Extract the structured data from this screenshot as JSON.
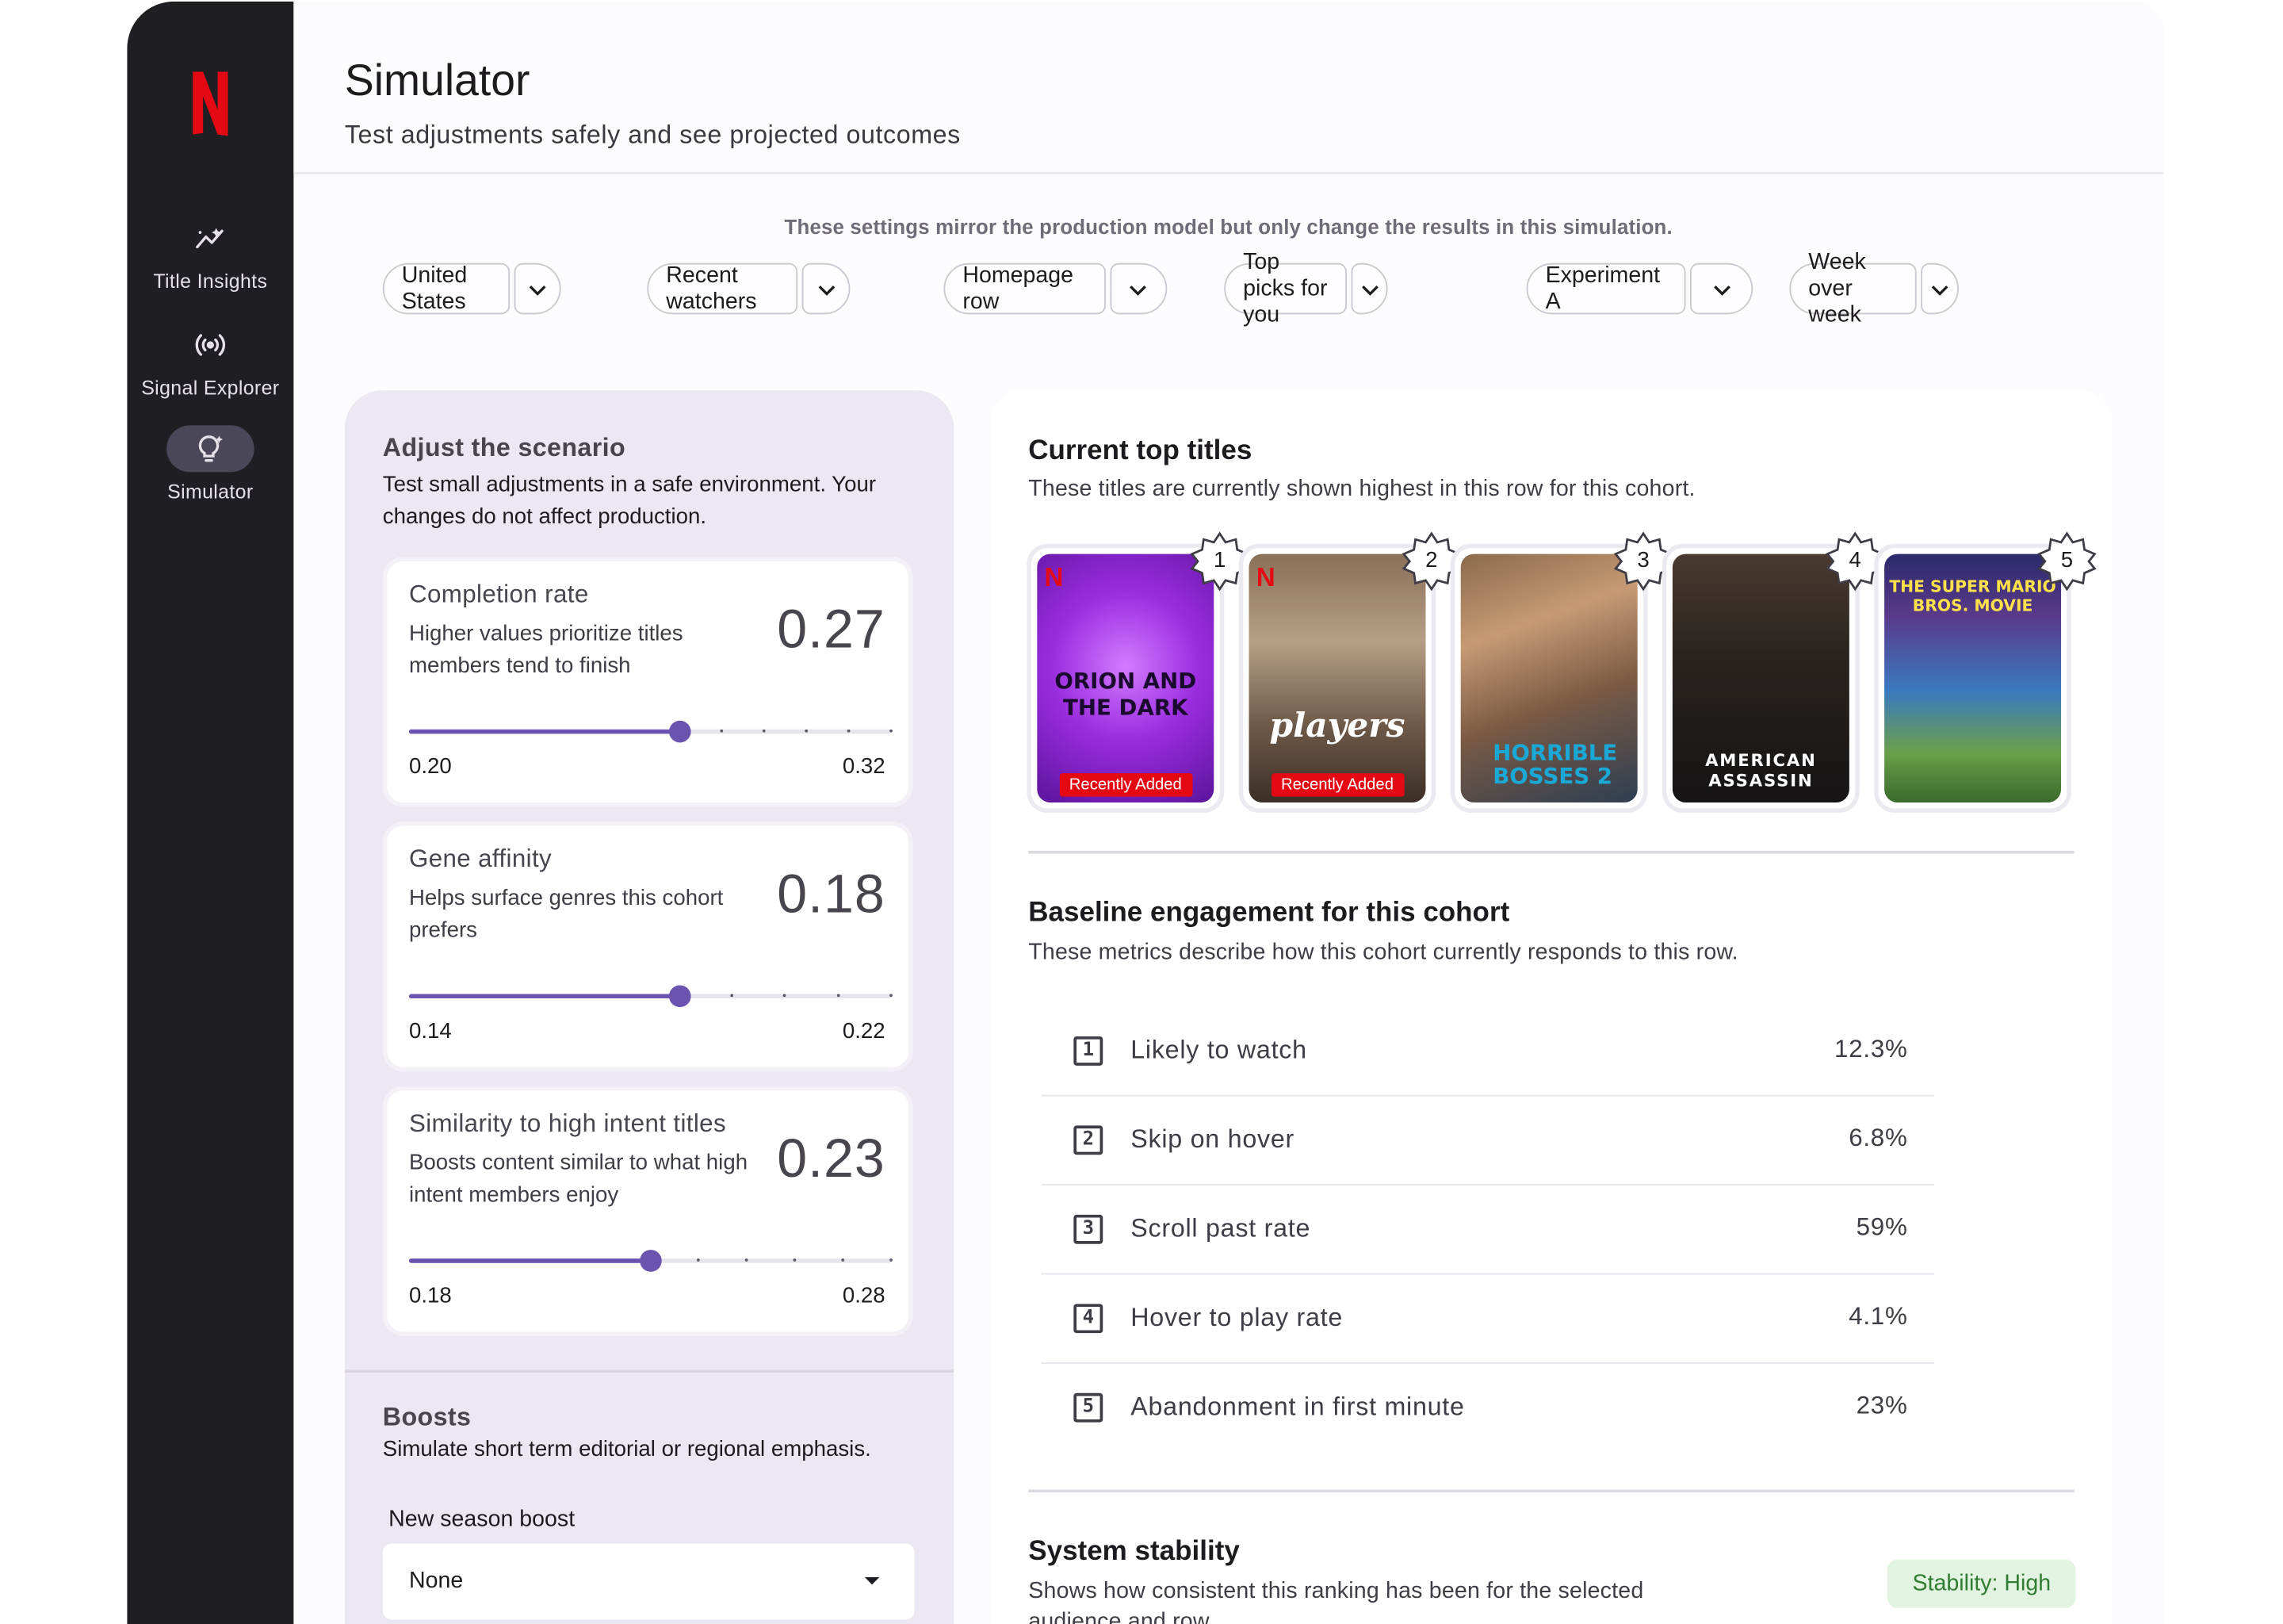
{
  "sidebar": {
    "logo": "N",
    "items": [
      {
        "label": "Title Insights",
        "icon": "trending-icon",
        "active": false
      },
      {
        "label": "Signal Explorer",
        "icon": "broadcast-icon",
        "active": false
      },
      {
        "label": "Simulator",
        "icon": "lightbulb-sparkle-icon",
        "active": true
      }
    ]
  },
  "header": {
    "title": "Simulator",
    "subtitle": "Test adjustments safely and see projected outcomes"
  },
  "filters": {
    "note": "These settings mirror the production model but only change the results in this simulation.",
    "items": [
      {
        "label": "United States"
      },
      {
        "label": "Recent watchers"
      },
      {
        "label": "Homepage row"
      },
      {
        "label": "Top picks for you"
      },
      {
        "label": "Experiment A"
      },
      {
        "label": "Week over week"
      }
    ]
  },
  "scenario": {
    "title": "Adjust the scenario",
    "description": "Test small adjustments in a safe environment. Your changes do not affect production.",
    "cards": [
      {
        "title": "Completion rate",
        "description": "Higher values prioritize titles members tend to finish",
        "value": "0.27",
        "min": "0.20",
        "max": "0.32",
        "level": 0.56
      },
      {
        "title": "Gene affinity",
        "description": "Helps surface genres this cohort prefers",
        "value": "0.18",
        "min": "0.14",
        "max": "0.22",
        "level": 0.56
      },
      {
        "title": "Similarity to high intent titles",
        "description": "Boosts content similar to what high intent members enjoy",
        "value": "0.23",
        "min": "0.18",
        "max": "0.28",
        "level": 0.5
      }
    ]
  },
  "boosts": {
    "title": "Boosts",
    "description": "Simulate short term editorial or regional emphasis.",
    "field_label": "New season boost",
    "selected": "None"
  },
  "top_titles": {
    "title": "Current top titles",
    "subtitle": "These titles are currently shown highest in this row for this cohort.",
    "posters": [
      {
        "rank": "1",
        "name": "ORION AND THE DARK",
        "tag": "Recently Added",
        "netflix": true
      },
      {
        "rank": "2",
        "name": "players",
        "tag": "Recently Added",
        "netflix": true
      },
      {
        "rank": "3",
        "name": "HORRIBLE BOSSES 2",
        "tag": "",
        "netflix": false
      },
      {
        "rank": "4",
        "name": "AMERICAN ASSASSIN",
        "tag": "",
        "netflix": false
      },
      {
        "rank": "5",
        "name": "THE SUPER MARIO BROS. MOVIE",
        "tag": "",
        "netflix": false
      }
    ]
  },
  "baseline": {
    "title": "Baseline engagement for this cohort",
    "subtitle": "These metrics describe how this cohort currently responds to this row.",
    "metrics": [
      {
        "rank": "1",
        "label": "Likely to watch",
        "value": "12.3%"
      },
      {
        "rank": "2",
        "label": "Skip on hover",
        "value": "6.8%"
      },
      {
        "rank": "3",
        "label": "Scroll past rate",
        "value": "59%"
      },
      {
        "rank": "4",
        "label": "Hover to play rate",
        "value": "4.1%"
      },
      {
        "rank": "5",
        "label": "Abandonment in first minute",
        "value": "23%"
      }
    ]
  },
  "stability": {
    "title": "System stability",
    "description": "Shows how consistent this ranking has been for the selected audience and row.",
    "badge": "Stability: High"
  },
  "colors": {
    "sidebar": "#1f1e22",
    "accent": "#6b53b0",
    "netflix_red": "#e50914",
    "stability_bg": "#e3f3e1",
    "stability_text": "#2f7d32"
  }
}
